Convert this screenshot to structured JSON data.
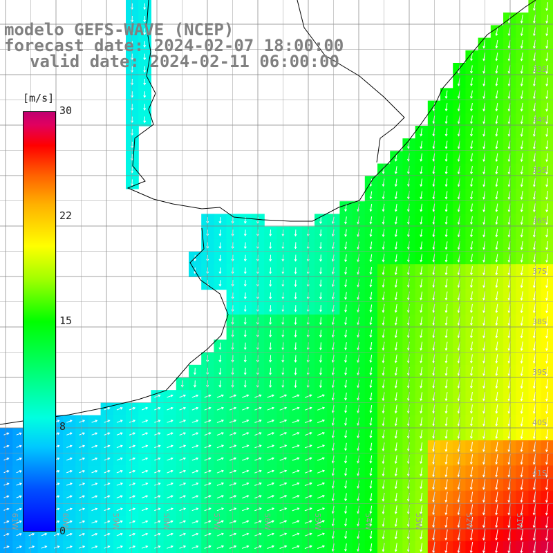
{
  "title": {
    "line1": "modelo GEFS-WAVE (NCEP)",
    "line2": "forecast date: 2024-02-07 18:00:00",
    "line3": "valid date: 2024-02-11 06:00:00"
  },
  "colorbar": {
    "unit_label": "[m/s]",
    "ticks": [
      "30",
      "22",
      "15",
      "8",
      "0"
    ]
  },
  "axes": {
    "lat_labels": [
      "33S",
      "34S",
      "35S",
      "36S",
      "37S",
      "38S",
      "39S",
      "40S",
      "41S"
    ],
    "lon_labels": [
      "61W",
      "60W",
      "59W",
      "58W",
      "57W",
      "56W",
      "55W",
      "54W",
      "53W",
      "52W",
      "51W"
    ]
  },
  "colors": {
    "land": "#ffffff",
    "coastline": "#000000",
    "grid": "#808080",
    "arrows": "#ffffff",
    "title": "#808080"
  }
}
